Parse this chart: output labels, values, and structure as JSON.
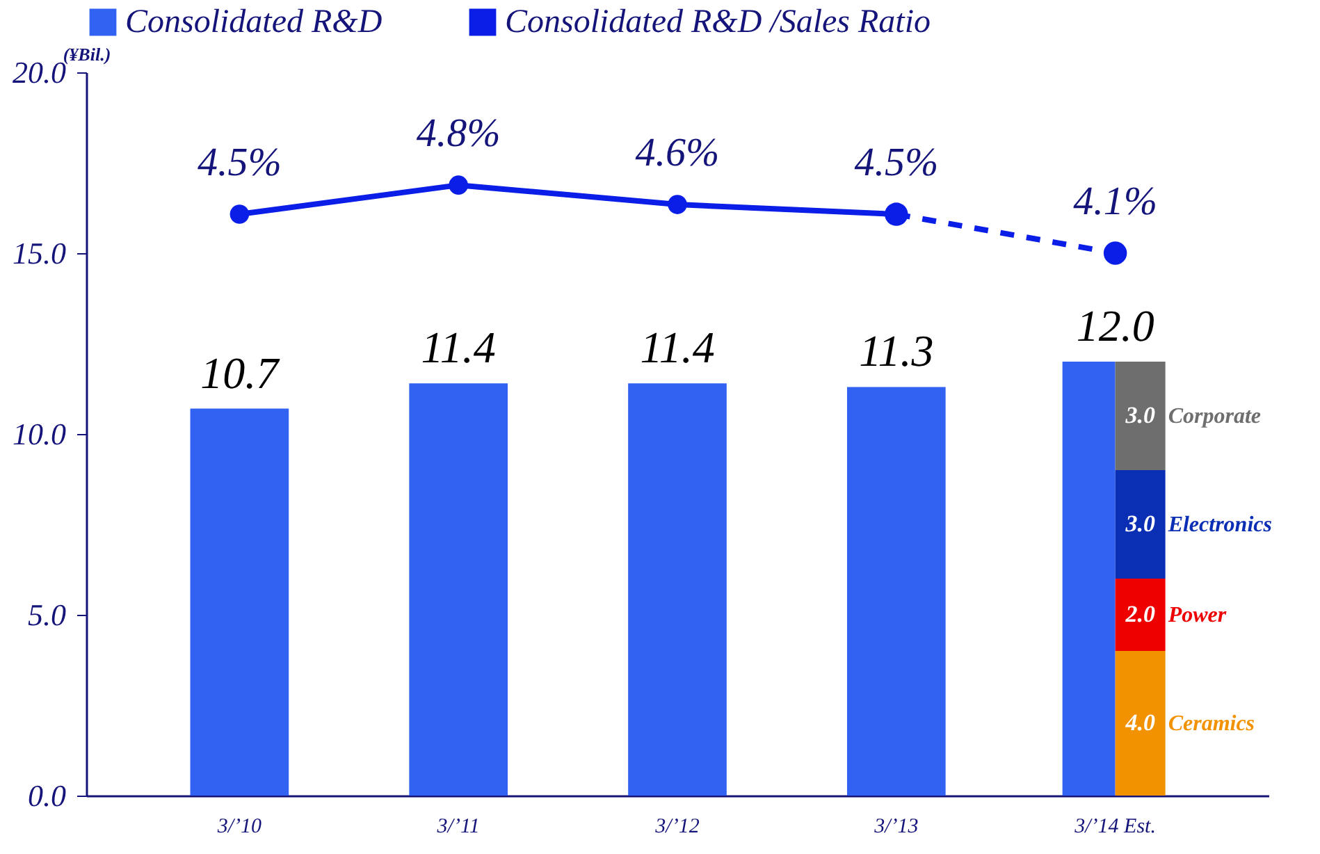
{
  "chart_data": {
    "type": "bar",
    "ylabel": "(¥Bil.)",
    "categories": [
      "3/’10",
      "3/’11",
      "3/’12",
      "3/’13",
      "3/’14 Est."
    ],
    "ylim": [
      0,
      20
    ],
    "yticks": [
      {
        "value": 0,
        "label": "0.0"
      },
      {
        "value": 5,
        "label": "5.0"
      },
      {
        "value": 10,
        "label": "10.0"
      },
      {
        "value": 15,
        "label": "15.0"
      },
      {
        "value": 20,
        "label": "20.0"
      }
    ],
    "y2lim": [
      -1.48,
      5.96
    ],
    "legend": "top",
    "series": [
      {
        "name": "Consolidated R&D",
        "color": "#3262f2",
        "values": [
          10.7,
          11.4,
          11.4,
          11.3,
          12.0
        ],
        "value_labels": [
          "10.7",
          "11.4",
          "11.4",
          "11.3",
          "12.0"
        ]
      },
      {
        "name": "Ceramics",
        "color": "#f39200",
        "values": [
          null,
          null,
          null,
          null,
          4.0
        ],
        "base": [
          null,
          null,
          null,
          null,
          0
        ],
        "value_labels": [
          null,
          null,
          null,
          null,
          "4.0"
        ]
      },
      {
        "name": "Power",
        "color": "#ee0000",
        "values": [
          null,
          null,
          null,
          null,
          2.0
        ],
        "base": [
          null,
          null,
          null,
          null,
          4
        ],
        "value_labels": [
          null,
          null,
          null,
          null,
          "2.0"
        ]
      },
      {
        "name": "Electronics",
        "color": "#0a2fb4",
        "values": [
          null,
          null,
          null,
          null,
          3.0
        ],
        "base": [
          null,
          null,
          null,
          null,
          6
        ],
        "value_labels": [
          null,
          null,
          null,
          null,
          "3.0"
        ]
      },
      {
        "name": "Corporate",
        "color": "#6e6e6e",
        "values": [
          null,
          null,
          null,
          null,
          3.0
        ],
        "base": [
          null,
          null,
          null,
          null,
          9
        ],
        "value_labels": [
          null,
          null,
          null,
          null,
          "3.0"
        ]
      },
      {
        "name": "Consolidated R&D /Sales Ratio",
        "type": "line",
        "axis": "y2",
        "color": "#0a1ee8",
        "marker": "circle",
        "line_style": "solid",
        "values": [
          4.5,
          4.8,
          4.6,
          4.5,
          null
        ],
        "value_labels": [
          "4.5%",
          "4.8%",
          "4.6%",
          "4.5%",
          null
        ]
      },
      {
        "type": "line",
        "axis": "y2",
        "color": "#0a1ee8",
        "marker": "circle",
        "line_style": "dashed",
        "values": [
          null,
          null,
          null,
          4.5,
          4.1
        ],
        "value_labels": [
          null,
          null,
          null,
          null,
          "4.1%"
        ]
      }
    ]
  }
}
